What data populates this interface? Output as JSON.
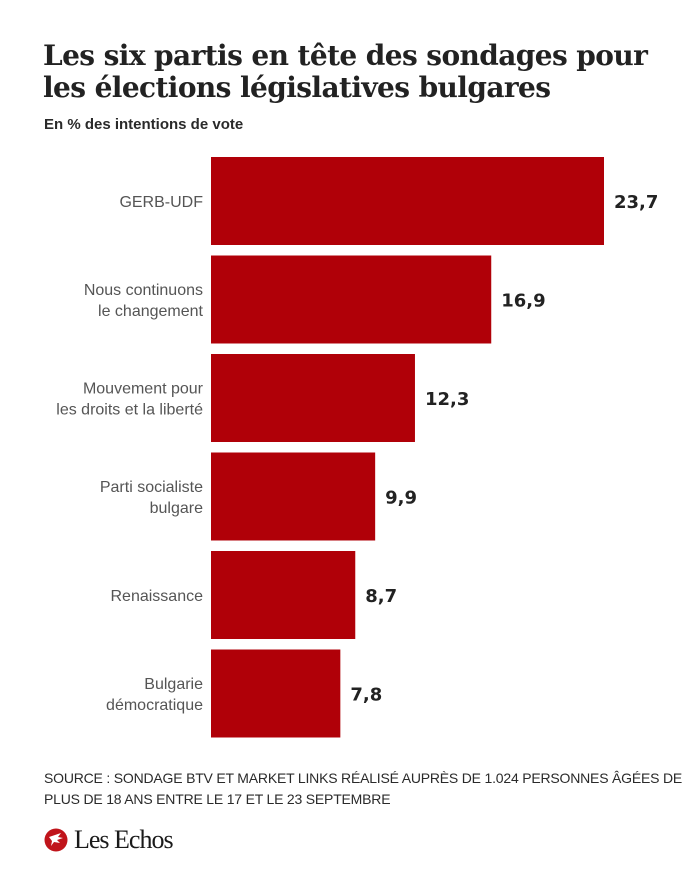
{
  "header": {
    "title": "Les six partis en tête des sondages pour les élections législatives bulgares",
    "subtitle": "En % des intentions de vote"
  },
  "footer": {
    "source": "SOURCE : SONDAGE BTV ET MARKET LINKS RÉALISÉ AUPRÈS DE 1.024 PERSONNES ÂGÉES DE PLUS DE 18 ANS ENTRE LE 17 ET LE 23 SEPTEMBRE",
    "brand": "Les Echos",
    "brand_icon": "les-echos-logo-icon"
  },
  "colors": {
    "bar": "#b00008",
    "label": "#555555",
    "value": "#222222",
    "brand": "#c0141b"
  },
  "chart_data": {
    "type": "bar",
    "orientation": "horizontal",
    "title": "Les six partis en tête des sondages pour les élections législatives bulgares",
    "subtitle": "En % des intentions de vote",
    "xlabel": "",
    "ylabel": "",
    "categories": [
      [
        "GERB-UDF"
      ],
      [
        "Nous continuons",
        "le changement"
      ],
      [
        "Mouvement pour",
        "les droits et la liberté"
      ],
      [
        "Parti socialiste",
        "bulgare"
      ],
      [
        "Renaissance"
      ],
      [
        "Bulgarie",
        "démocratique"
      ]
    ],
    "values": [
      23.7,
      16.9,
      12.3,
      9.9,
      8.7,
      7.8
    ],
    "value_labels": [
      "23,7",
      "16,9",
      "12,3",
      "9,9",
      "8,7",
      "7,8"
    ],
    "xlim": [
      0,
      23.7
    ],
    "grid": false,
    "legend": "none"
  }
}
